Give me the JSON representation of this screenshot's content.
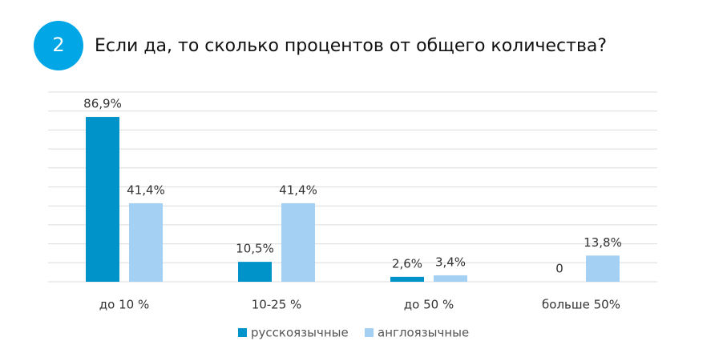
{
  "chart_data": {
    "type": "bar",
    "badge": "2",
    "title": "Если да, то сколько процентов от общего количества?",
    "categories": [
      "до 10 %",
      "10-25 %",
      "до 50 %",
      "больше 50%"
    ],
    "series": [
      {
        "name": "русскоязычные",
        "color": "#0093c9",
        "values": [
          86.9,
          10.5,
          2.6,
          0
        ],
        "value_labels": [
          "86,9%",
          "10,5%",
          "2,6%",
          "0"
        ]
      },
      {
        "name": "англоязычные",
        "color": "#a3d0f3",
        "values": [
          41.4,
          41.4,
          3.4,
          13.8
        ],
        "value_labels": [
          "41,4%",
          "41,4%",
          "3,4%",
          "13,8%"
        ]
      }
    ],
    "ylim": [
      0,
      100
    ],
    "yticks": [
      0,
      10,
      20,
      30,
      40,
      50,
      60,
      70,
      80,
      90,
      100
    ],
    "grid": true,
    "legend": "bottom"
  }
}
